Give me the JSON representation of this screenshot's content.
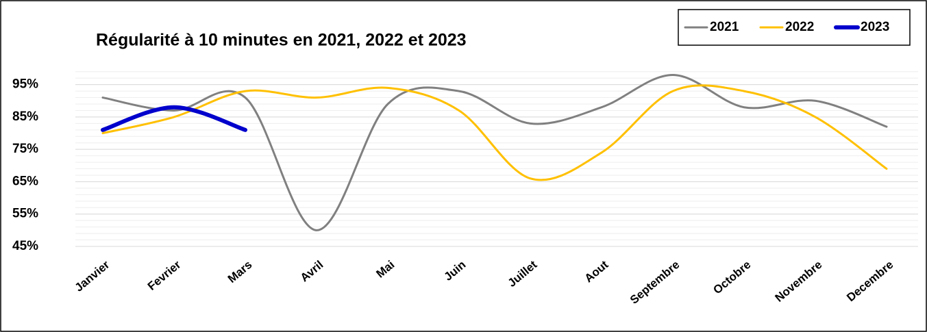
{
  "chart_data": {
    "type": "line",
    "title": "Régularité à 10 minutes en 2021, 2022 et 2023",
    "categories": [
      "Janvier",
      "Fevrier",
      "Mars",
      "Avril",
      "Mai",
      "Juin",
      "Juillet",
      "Aout",
      "Septembre",
      "Octobre",
      "Novembre",
      "Decembre"
    ],
    "series": [
      {
        "name": "2021",
        "color": "#808080",
        "width": 3,
        "values": [
          91,
          87,
          91,
          50,
          89,
          93,
          83,
          88,
          98,
          88,
          90,
          82
        ]
      },
      {
        "name": "2022",
        "color": "#FFC000",
        "width": 3,
        "values": [
          80,
          85,
          93,
          91,
          94,
          87,
          66,
          74,
          93,
          93,
          85,
          69
        ]
      },
      {
        "name": "2023",
        "color": "#0000CC",
        "width": 6,
        "values": [
          81,
          88,
          81,
          null,
          null,
          null,
          null,
          null,
          null,
          null,
          null,
          null
        ]
      }
    ],
    "ylim": [
      45,
      100
    ],
    "yticks": [
      {
        "value": 45,
        "label": "45%"
      },
      {
        "value": 55,
        "label": "55%"
      },
      {
        "value": 65,
        "label": "65%"
      },
      {
        "value": 75,
        "label": "75%"
      },
      {
        "value": 85,
        "label": "85%"
      },
      {
        "value": 95,
        "label": "95%"
      }
    ],
    "grid": true,
    "smooth": true,
    "legend": "top-right"
  }
}
